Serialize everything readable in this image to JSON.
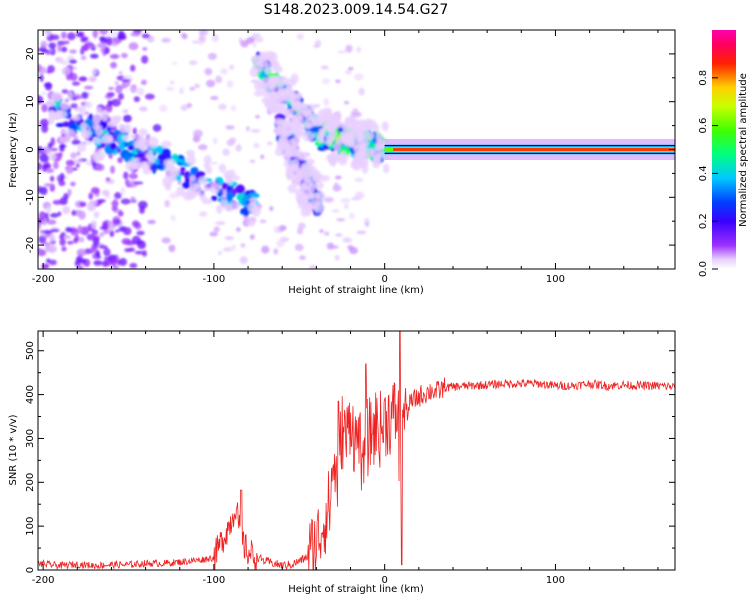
{
  "figure_title": "S148.2023.009.14.54.G27",
  "colorbar": {
    "label": "Normalized spectral amplitude",
    "ticks": [
      "0.0",
      "0.2",
      "0.4",
      "0.6",
      "0.8"
    ],
    "tick_values": [
      0.0,
      0.2,
      0.4,
      0.6,
      0.8
    ],
    "range": [
      0,
      1
    ],
    "colormap": "rainbow (white→violet→blue→cyan→green→yellow→red→magenta)"
  },
  "chart_data": [
    {
      "type": "heatmap",
      "xlabel": "Height of straight line (km)",
      "ylabel": "Frequency (Hz)",
      "xlim": [
        -203,
        170
      ],
      "ylim": [
        -25,
        25
      ],
      "xticks": [
        "-200",
        "-100",
        "0",
        "100"
      ],
      "xtick_values": [
        -200,
        -100,
        0,
        100
      ],
      "yticks": [
        "20",
        "10",
        "0",
        "-10",
        "-20"
      ],
      "ytick_values": [
        20,
        10,
        0,
        -10,
        -20
      ],
      "features": [
        {
          "description": "diffuse scattered spectral energy",
          "x_range": [
            -203,
            -130
          ],
          "freq_range": [
            -25,
            25
          ],
          "amplitude": 0.15
        },
        {
          "description": "descending Doppler track",
          "x_from": -195,
          "x_to": -75,
          "freq_from": 8,
          "freq_to": -12,
          "amplitude_peak": 0.35
        },
        {
          "description": "steep descending track",
          "x_from": -75,
          "x_to": -35,
          "freq_from": 18,
          "freq_to": 2,
          "amplitude_peak": 0.45
        },
        {
          "description": "second descending track",
          "x_from": -62,
          "x_to": -38,
          "freq_from": 5,
          "freq_to": -12,
          "amplitude_peak": 0.3
        },
        {
          "description": "converging near-zero Doppler track",
          "x_from": -35,
          "x_to": 0,
          "freq_from": 3,
          "freq_to": 0,
          "amplitude_peak": 0.5
        },
        {
          "description": "steady direct signal at 0 Hz",
          "x_from": 0,
          "x_to": 170,
          "freq": 0,
          "amplitude": 1.0
        }
      ]
    },
    {
      "type": "line",
      "xlabel": "Height of straight line (km)",
      "ylabel": "SNR (10 * v/v)",
      "xlim": [
        -203,
        170
      ],
      "ylim": [
        0,
        545
      ],
      "xticks": [
        "-200",
        "-100",
        "0",
        "100"
      ],
      "xtick_values": [
        -200,
        -100,
        0,
        100
      ],
      "yticks": [
        "0",
        "100",
        "200",
        "300",
        "400",
        "500"
      ],
      "ytick_values": [
        0,
        100,
        200,
        300,
        400,
        500
      ],
      "color": "#ee2222",
      "series": [
        {
          "x": [
            -203,
            -190,
            -180,
            -170,
            -160,
            -150,
            -140,
            -130,
            -120,
            -110,
            -105,
            -100,
            -95,
            -90,
            -87,
            -85,
            -83,
            -80,
            -75,
            -70,
            -65,
            -60,
            -55,
            -50,
            -45,
            -40,
            -35,
            -32,
            -30,
            -28,
            -25,
            -22,
            -20,
            -17,
            -15,
            -13,
            -12,
            -10,
            -8,
            -5,
            -2,
            0,
            2,
            4,
            6,
            8,
            9,
            10,
            11,
            12,
            13,
            15,
            18,
            20,
            22,
            25,
            28,
            30,
            35,
            40,
            50,
            60,
            70,
            80,
            90,
            100,
            110,
            120,
            130,
            140,
            150,
            160,
            170
          ],
          "y": [
            15,
            10,
            13,
            10,
            12,
            12,
            15,
            15,
            18,
            22,
            25,
            28,
            70,
            110,
            150,
            90,
            60,
            40,
            30,
            20,
            15,
            10,
            12,
            20,
            30,
            60,
            120,
            150,
            250,
            200,
            320,
            300,
            360,
            280,
            330,
            160,
            320,
            300,
            310,
            330,
            320,
            340,
            350,
            345,
            355,
            360,
            10,
            380,
            320,
            400,
            360,
            380,
            390,
            395,
            400,
            405,
            410,
            405,
            415,
            418,
            420,
            422,
            425,
            425,
            425,
            420,
            420,
            425,
            420,
            422,
            420,
            420,
            418
          ]
        }
      ],
      "spikes": [
        {
          "x": -84,
          "y": 182
        },
        {
          "x": -27,
          "y": 385
        },
        {
          "x": -11,
          "y": 470
        },
        {
          "x": 9,
          "y": 545
        },
        {
          "x": 10,
          "y": 12
        }
      ]
    }
  ]
}
